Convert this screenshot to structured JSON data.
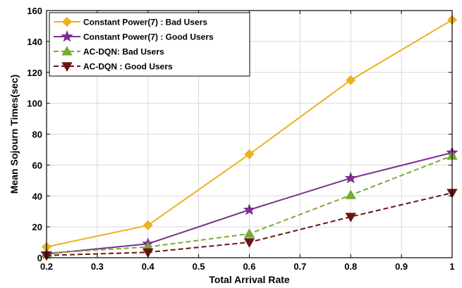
{
  "chart_data": {
    "type": "line",
    "title": "",
    "xlabel": "Total Arrival Rate",
    "ylabel": "Mean Sojourn Times(sec)",
    "xlim": [
      0.2,
      1.0
    ],
    "ylim": [
      0,
      160
    ],
    "xticks": [
      "0.2",
      "0.3",
      "0.4",
      "0.5",
      "0.6",
      "0.7",
      "0.8",
      "0.9",
      "1"
    ],
    "yticks": [
      "0",
      "20",
      "40",
      "60",
      "80",
      "100",
      "120",
      "140",
      "160"
    ],
    "grid": true,
    "legend_position": "top-left",
    "x": [
      0.2,
      0.4,
      0.6,
      0.8,
      1.0
    ],
    "series": [
      {
        "name": "Constant Power(7) : Bad Users",
        "values": [
          7,
          21,
          67,
          115,
          154
        ],
        "color": "#EDB120",
        "marker": "diamond",
        "dash": "solid"
      },
      {
        "name": "Constant Power(7) : Good Users",
        "values": [
          2.5,
          9,
          31,
          51.5,
          68
        ],
        "color": "#7E2F8E",
        "marker": "star",
        "dash": "solid"
      },
      {
        "name": "AC-DQN: Bad Users",
        "values": [
          3,
          7,
          15.5,
          40.5,
          66
        ],
        "color": "#77AC30",
        "marker": "triangle-up",
        "dash": "dashed"
      },
      {
        "name": "AC-DQN : Good Users",
        "values": [
          1.5,
          3.5,
          10,
          26.5,
          42
        ],
        "color": "#6B1414",
        "marker": "triangle-down",
        "dash": "dashed"
      }
    ]
  }
}
